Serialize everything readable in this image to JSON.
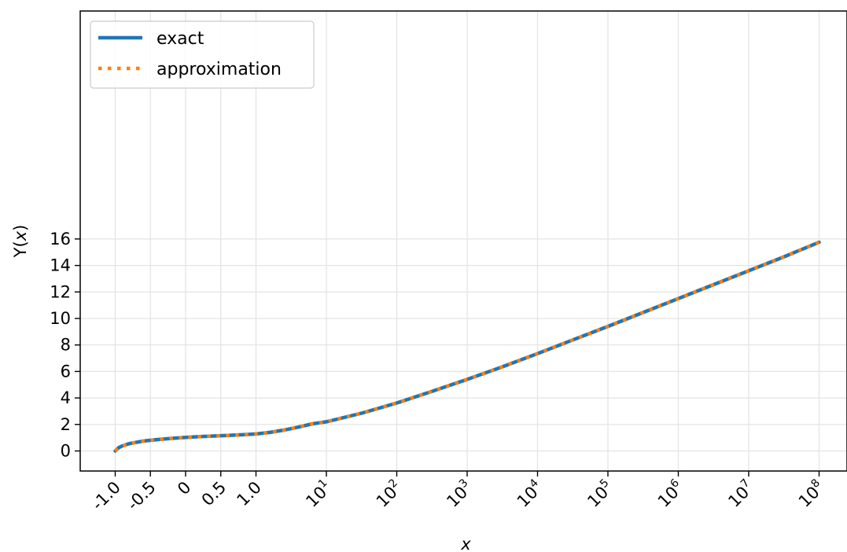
{
  "chart_data": {
    "type": "line",
    "title": "",
    "xlabel": "x",
    "ylabel": "Y(x)",
    "xscale": "piecewise: linear on [-1, 1], log10 above 1",
    "xlim": [
      -1.0,
      100000000
    ],
    "ylim": [
      -0.8,
      16.5
    ],
    "grid": true,
    "legend_position": "top-left",
    "x_ticks": [
      -1.0,
      -0.5,
      0,
      0.5,
      1.0,
      10,
      100,
      1000,
      10000,
      100000,
      1000000,
      10000000,
      100000000
    ],
    "x_tick_labels": [
      {
        "base": "-1.0",
        "exp": ""
      },
      {
        "base": "-0.5",
        "exp": ""
      },
      {
        "base": "0",
        "exp": ""
      },
      {
        "base": "0.5",
        "exp": ""
      },
      {
        "base": "1.0",
        "exp": ""
      },
      {
        "base": "10",
        "exp": "1"
      },
      {
        "base": "10",
        "exp": "2"
      },
      {
        "base": "10",
        "exp": "3"
      },
      {
        "base": "10",
        "exp": "4"
      },
      {
        "base": "10",
        "exp": "5"
      },
      {
        "base": "10",
        "exp": "6"
      },
      {
        "base": "10",
        "exp": "7"
      },
      {
        "base": "10",
        "exp": "8"
      }
    ],
    "y_ticks": [
      0,
      2,
      4,
      6,
      8,
      10,
      12,
      14,
      16
    ],
    "y_tick_labels": [
      "0",
      "2",
      "4",
      "6",
      "8",
      "10",
      "12",
      "14",
      "16"
    ],
    "x": [
      -1.0,
      -0.95,
      -0.9,
      -0.8,
      -0.6,
      -0.4,
      -0.2,
      0,
      0.2,
      0.4,
      0.6,
      0.8,
      1.0,
      1.58,
      2.51,
      3.98,
      6.31,
      10,
      31.6,
      100,
      316,
      1000,
      3162,
      10000,
      31623,
      100000,
      316228,
      1000000,
      3162278,
      10000000,
      31622777,
      100000000
    ],
    "series": [
      {
        "name": "exact",
        "color": "#1f77b4",
        "style": "solid",
        "y": [
          0.0,
          0.25,
          0.38,
          0.55,
          0.75,
          0.86,
          0.95,
          1.02,
          1.08,
          1.13,
          1.17,
          1.22,
          1.28,
          1.4,
          1.58,
          1.8,
          2.05,
          2.2,
          2.85,
          3.62,
          4.5,
          5.4,
          6.35,
          7.35,
          8.38,
          9.4,
          10.45,
          11.5,
          12.55,
          13.6,
          14.65,
          15.75
        ]
      },
      {
        "name": "approximation",
        "color": "#ff7f0e",
        "style": "dotted",
        "y": [
          0.0,
          0.25,
          0.38,
          0.55,
          0.75,
          0.86,
          0.95,
          1.02,
          1.08,
          1.13,
          1.17,
          1.22,
          1.28,
          1.4,
          1.58,
          1.8,
          2.05,
          2.2,
          2.85,
          3.62,
          4.5,
          5.4,
          6.35,
          7.35,
          8.38,
          9.4,
          10.45,
          11.5,
          12.55,
          13.6,
          14.65,
          15.75
        ]
      }
    ]
  }
}
